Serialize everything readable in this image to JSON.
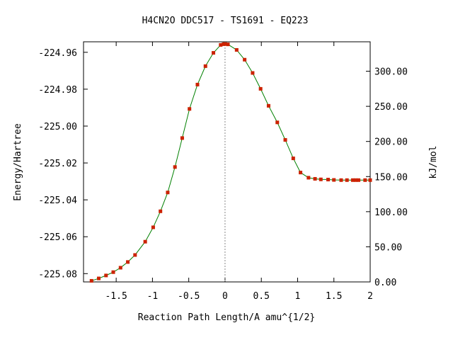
{
  "chart_data": {
    "type": "line",
    "title": "H4CN2O   DDC517 - TS1691 - EQ223",
    "xlabel": "Reaction Path Length/A amu^{1/2}",
    "ylabel": "Energy/Hartree",
    "y2label": "kJ/mol",
    "xlim": [
      -1.95,
      2.0
    ],
    "ylim": [
      -225.0845,
      -224.9543
    ],
    "y2lim": [
      0.0,
      341.9
    ],
    "grid": false,
    "legend": "none",
    "x_ticks": [
      -1.5,
      -1,
      -0.5,
      0,
      0.5,
      1,
      1.5,
      2
    ],
    "x_tick_labels": [
      "-1.5",
      "-1",
      "-0.5",
      "0",
      "0.5",
      "1",
      "1.5",
      "2"
    ],
    "y_ticks": [
      -224.96,
      -224.98,
      -225.0,
      -225.02,
      -225.04,
      -225.06,
      -225.08
    ],
    "y_tick_labels": [
      "-224.96",
      "-224.98",
      "-225.00",
      "-225.02",
      "-225.04",
      "-225.06",
      "-225.08"
    ],
    "y2_ticks": [
      0,
      50,
      100,
      150,
      200,
      250,
      300
    ],
    "y2_tick_labels": [
      "0.00",
      "50.00",
      "100.00",
      "150.00",
      "200.00",
      "250.00",
      "300.00"
    ],
    "ts_x": 0.0,
    "series": [
      {
        "color": "#008000",
        "marker_color": "#cc2200",
        "points": [
          [
            -1.84,
            -225.0839
          ],
          [
            -1.74,
            -225.0826
          ],
          [
            -1.64,
            -225.081
          ],
          [
            -1.54,
            -225.0792
          ],
          [
            -1.44,
            -225.0768
          ],
          [
            -1.34,
            -225.0737
          ],
          [
            -1.24,
            -225.0699
          ],
          [
            -1.1,
            -225.0627
          ],
          [
            -0.99,
            -225.0549
          ],
          [
            -0.89,
            -225.0462
          ],
          [
            -0.79,
            -225.036
          ],
          [
            -0.69,
            -225.0222
          ],
          [
            -0.59,
            -225.0065
          ],
          [
            -0.49,
            -224.9907
          ],
          [
            -0.38,
            -224.9775
          ],
          [
            -0.27,
            -224.9675
          ],
          [
            -0.16,
            -224.9603
          ],
          [
            -0.06,
            -224.956
          ],
          [
            -0.02,
            -224.9556
          ],
          [
            0.0,
            -224.9555
          ],
          [
            0.04,
            -224.9557
          ],
          [
            0.16,
            -224.9587
          ],
          [
            0.27,
            -224.964
          ],
          [
            0.38,
            -224.9712
          ],
          [
            0.49,
            -224.9798
          ],
          [
            0.6,
            -224.989
          ],
          [
            0.72,
            -224.998
          ],
          [
            0.83,
            -225.0075
          ],
          [
            0.94,
            -225.0175
          ],
          [
            1.04,
            -225.0252
          ],
          [
            1.15,
            -225.028
          ],
          [
            1.24,
            -225.0286
          ],
          [
            1.32,
            -225.0289
          ],
          [
            1.42,
            -225.029
          ],
          [
            1.5,
            -225.0292
          ],
          [
            1.6,
            -225.0293
          ],
          [
            1.68,
            -225.0293
          ],
          [
            1.76,
            -225.0293
          ],
          [
            1.8,
            -225.0293
          ],
          [
            1.84,
            -225.0293
          ],
          [
            1.93,
            -225.0293
          ],
          [
            2.0,
            -225.0293
          ]
        ]
      }
    ]
  }
}
